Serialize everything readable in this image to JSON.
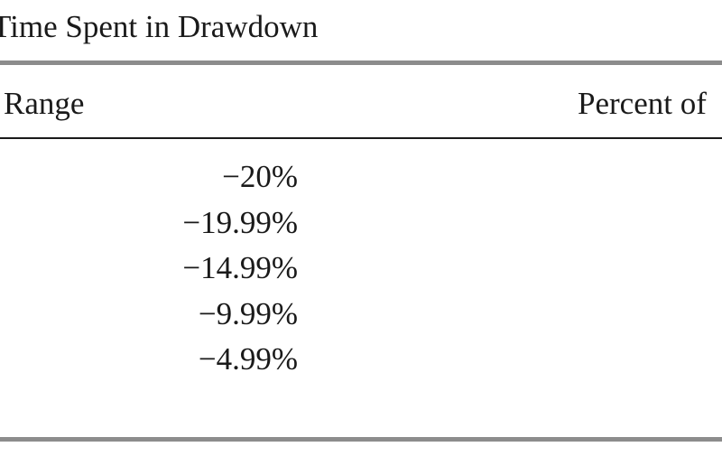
{
  "title": "Time Spent in Drawdown",
  "table": {
    "header": [
      "Range",
      "Percent of"
    ],
    "rows": [
      "−20%",
      "−19.99%",
      "−14.99%",
      "−9.99%",
      "−4.99%"
    ]
  }
}
